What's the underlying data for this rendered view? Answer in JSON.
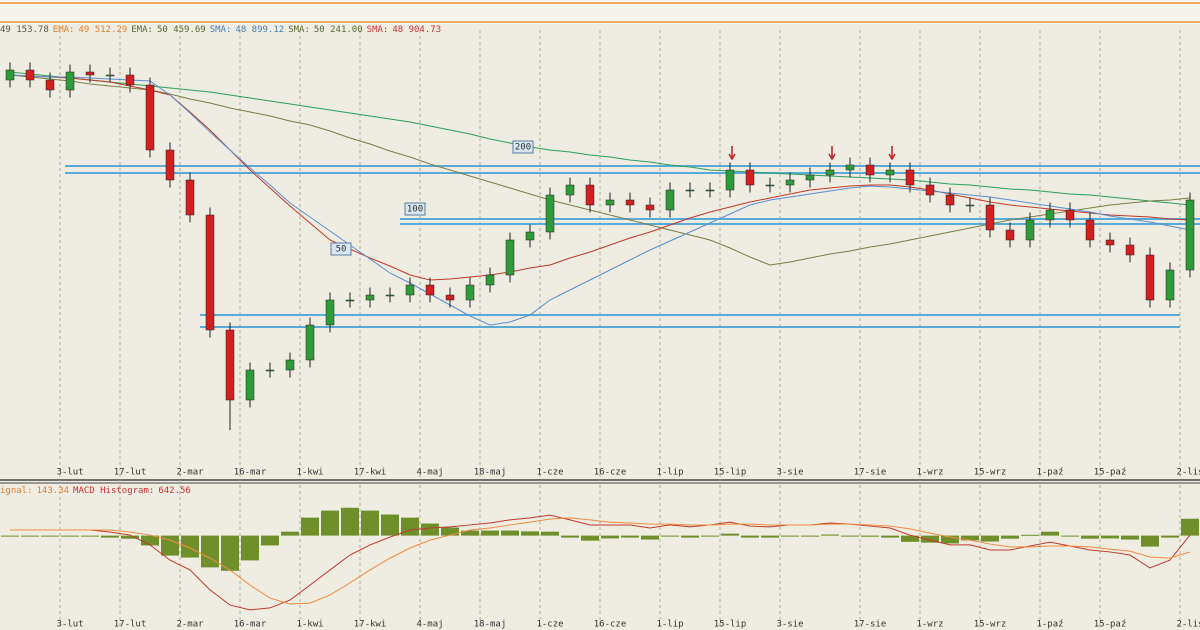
{
  "chart_data": [
    {
      "type": "candlestick",
      "categories": [
        null,
        null,
        null,
        "3-lut",
        null,
        null,
        "17-lut",
        null,
        null,
        "2-mar",
        null,
        null,
        "16-mar",
        null,
        null,
        "1-kwi",
        null,
        null,
        "17-kwi",
        null,
        null,
        "4-maj",
        null,
        null,
        "18-maj",
        null,
        null,
        "1-cze",
        null,
        null,
        "16-cze",
        null,
        null,
        "1-lip",
        null,
        null,
        "15-lip",
        null,
        null,
        "3-sie",
        null,
        null,
        null,
        "17-sie",
        null,
        null,
        "1-wrz",
        null,
        null,
        "15-wrz",
        null,
        null,
        "1-paź",
        null,
        null,
        "15-paź",
        null,
        null,
        null,
        "2-lis"
      ],
      "open": [
        54000,
        54400,
        54000,
        53600,
        54320,
        54200,
        54200,
        53800,
        51200,
        50000,
        48600,
        44000,
        41200,
        42400,
        42400,
        42800,
        44200,
        45200,
        45200,
        45400,
        45400,
        45800,
        45400,
        45200,
        45800,
        46200,
        47600,
        47920,
        49400,
        49800,
        49000,
        49200,
        49000,
        48800,
        49600,
        49600,
        49600,
        50400,
        49800,
        49800,
        50000,
        50200,
        50400,
        50600,
        50200,
        50400,
        49800,
        49400,
        49000,
        49000,
        48000,
        47600,
        48400,
        48800,
        48400,
        47600,
        47400,
        47000,
        45200,
        46400
      ],
      "high": [
        54700,
        54700,
        54300,
        54620,
        54620,
        54500,
        54500,
        54100,
        51500,
        50300,
        48900,
        44300,
        42700,
        42700,
        43100,
        44500,
        45500,
        45500,
        45700,
        45700,
        46100,
        46100,
        45700,
        46100,
        46500,
        47900,
        48220,
        49700,
        50100,
        50100,
        49500,
        49500,
        49300,
        49900,
        49900,
        49900,
        50700,
        50700,
        50100,
        50300,
        50500,
        50700,
        50900,
        50900,
        50700,
        50700,
        50100,
        49700,
        49300,
        49300,
        48300,
        48700,
        49100,
        49100,
        48700,
        47900,
        47700,
        47300,
        46700,
        49500
      ],
      "low": [
        53700,
        53700,
        53300,
        53300,
        53900,
        53900,
        53500,
        50900,
        49700,
        48300,
        43700,
        40000,
        40900,
        42100,
        42100,
        42500,
        43900,
        44900,
        44900,
        45100,
        45100,
        45100,
        44900,
        44900,
        45500,
        45900,
        47300,
        47620,
        49100,
        48700,
        48700,
        48700,
        48500,
        48500,
        49300,
        49300,
        49300,
        49500,
        49500,
        49500,
        49700,
        49900,
        50100,
        49900,
        49900,
        49500,
        49100,
        48700,
        48700,
        47700,
        47300,
        47300,
        48100,
        48100,
        47300,
        47100,
        46700,
        44900,
        44900,
        46100
      ],
      "close": [
        54400,
        54000,
        53600,
        54320,
        54200,
        54200,
        53800,
        51200,
        50000,
        48600,
        44000,
        41200,
        42400,
        42400,
        42800,
        44200,
        45200,
        45200,
        45400,
        45400,
        45800,
        45400,
        45200,
        45800,
        46200,
        47600,
        47920,
        49400,
        49800,
        49000,
        49200,
        49000,
        48800,
        49600,
        49600,
        49600,
        50400,
        49800,
        49800,
        50000,
        50200,
        50400,
        50600,
        50200,
        50400,
        49800,
        49400,
        49000,
        49000,
        48000,
        47600,
        48400,
        48800,
        48400,
        47600,
        47400,
        47000,
        45200,
        46400,
        49200
      ],
      "up_color": "#2f9a3a",
      "down_color": "#d02020",
      "series": [
        {
          "color": "#2ca05a",
          "values": [
            54320,
            54240,
            54160,
            54080,
            54000,
            53920,
            53840,
            53760,
            53680,
            53600,
            53520,
            53400,
            53280,
            53160,
            53040,
            52920,
            52800,
            52680,
            52560,
            52440,
            52320,
            52160,
            52000,
            51840,
            51640,
            51480,
            51320,
            51200,
            51120,
            51000,
            50920,
            50800,
            50720,
            50600,
            50520,
            50400,
            50360,
            50320,
            50280,
            50240,
            50200,
            50160,
            50120,
            50080,
            50040,
            50000,
            49920,
            49840,
            49800,
            49720,
            49640,
            49600,
            49520,
            49440,
            49400,
            49320,
            49240,
            49160,
            49080,
            49000
          ]
        },
        {
          "color": "#7a8046",
          "values": [
            54200,
            54120,
            54040,
            53960,
            53840,
            53760,
            53680,
            53600,
            53440,
            53240,
            53080,
            52880,
            52720,
            52560,
            52360,
            52200,
            51960,
            51680,
            51440,
            51160,
            50920,
            50640,
            50400,
            50160,
            49920,
            49680,
            49440,
            49200,
            49000,
            48800,
            48600,
            48400,
            48200,
            48000,
            47800,
            47600,
            47280,
            46920,
            46600,
            46720,
            46880,
            47040,
            47160,
            47320,
            47440,
            47600,
            47760,
            47920,
            48080,
            48240,
            48400,
            48520,
            48640,
            48760,
            48880,
            49000,
            49080,
            49160,
            49200,
            49280
          ]
        },
        {
          "color": "#c0392b",
          "values": [
            54200,
            54160,
            54120,
            54080,
            54000,
            53920,
            53760,
            53600,
            53400,
            52720,
            52000,
            51200,
            50400,
            49680,
            48960,
            48280,
            47600,
            47240,
            46880,
            46560,
            46200,
            46000,
            46040,
            46120,
            46200,
            46320,
            46480,
            46600,
            46880,
            47120,
            47400,
            47680,
            47920,
            48200,
            48480,
            48720,
            48920,
            49120,
            49280,
            49440,
            49600,
            49680,
            49760,
            49800,
            49800,
            49720,
            49600,
            49440,
            49280,
            49120,
            49000,
            48920,
            48840,
            48760,
            48680,
            48600,
            48560,
            48520,
            48440,
            48400
          ]
        },
        {
          "color": "#5b8fd0",
          "values": [
            54200,
            54160,
            54120,
            54120,
            54080,
            54040,
            54000,
            53960,
            53400,
            52680,
            51920,
            51200,
            50480,
            49800,
            49080,
            48520,
            47960,
            47400,
            46840,
            46280,
            45880,
            45440,
            45000,
            44560,
            44200,
            44320,
            44600,
            45200,
            45600,
            46000,
            46400,
            46800,
            47200,
            47560,
            47920,
            48280,
            48640,
            49000,
            49200,
            49320,
            49440,
            49560,
            49680,
            49760,
            49720,
            49640,
            49560,
            49480,
            49400,
            49320,
            49200,
            49080,
            48960,
            48840,
            48720,
            48560,
            48440,
            48320,
            48160,
            48000
          ]
        }
      ],
      "levels": [
        50560,
        50280,
        48440,
        48240,
        44600,
        44120
      ],
      "level_color": "#5aaad8",
      "annotations": [
        "200",
        "100",
        "50"
      ],
      "ylim": [
        38000,
        56000
      ],
      "legend": [
        {
          "label": "",
          "text": "49 153.78",
          "color": "#555555"
        },
        {
          "label": "EMA:",
          "text": "49 512.29",
          "color": "#e08030"
        },
        {
          "label": "EMA:",
          "text": "50 459.69",
          "color": "#556b2f"
        },
        {
          "label": "SMA:",
          "text": "48 899.12",
          "color": "#4682b4"
        },
        {
          "label": "SMA:",
          "text": "50 241.00",
          "color": "#556b2f"
        },
        {
          "label": "SMA:",
          "text": "48 904.73",
          "color": "#cc3333"
        }
      ],
      "grid": true
    },
    {
      "type": "macd",
      "categories": [
        null,
        null,
        null,
        "3-lut",
        null,
        null,
        "17-lut",
        null,
        null,
        "2-mar",
        null,
        null,
        "16-mar",
        null,
        null,
        "1-kwi",
        null,
        null,
        "17-kwi",
        null,
        null,
        "4-maj",
        null,
        null,
        "18-maj",
        null,
        null,
        "1-cze",
        null,
        null,
        "16-cze",
        null,
        null,
        "1-lip",
        null,
        null,
        "15-lip",
        null,
        null,
        "3-sie",
        null,
        null,
        null,
        "17-sie",
        null,
        null,
        "1-wrz",
        null,
        null,
        "15-wrz",
        null,
        null,
        "1-paź",
        null,
        null,
        "15-paź",
        null,
        null,
        null,
        "2-lis"
      ],
      "series": [
        {
          "color": "#c0392b",
          "values": [
            200,
            200,
            200,
            200,
            200,
            130,
            20,
            -330,
            -870,
            -1220,
            -1930,
            -2470,
            -2640,
            -2570,
            -2290,
            -1760,
            -1220,
            -690,
            -330,
            -50,
            200,
            270,
            310,
            380,
            450,
            560,
            630,
            730,
            560,
            380,
            380,
            380,
            270,
            380,
            310,
            380,
            480,
            340,
            310,
            380,
            380,
            450,
            410,
            340,
            270,
            20,
            -160,
            -330,
            -330,
            -510,
            -510,
            -370,
            -230,
            -370,
            -510,
            -580,
            -690,
            -1150,
            -870,
            20
          ]
        },
        {
          "color": "#f08c40",
          "values": [
            200,
            200,
            200,
            200,
            200,
            200,
            130,
            20,
            -160,
            -440,
            -800,
            -1220,
            -1760,
            -2220,
            -2430,
            -2400,
            -2110,
            -1680,
            -1220,
            -800,
            -440,
            -160,
            20,
            200,
            270,
            380,
            480,
            590,
            630,
            560,
            480,
            450,
            410,
            410,
            380,
            380,
            410,
            410,
            380,
            380,
            380,
            410,
            410,
            380,
            340,
            240,
            90,
            -50,
            -160,
            -300,
            -400,
            -400,
            -370,
            -370,
            -400,
            -480,
            -550,
            -760,
            -800,
            -580
          ]
        }
      ],
      "histogram": [
        0,
        0,
        0,
        0,
        0,
        -70,
        -110,
        -350,
        -710,
        -780,
        -1130,
        -1250,
        -880,
        -350,
        140,
        640,
        890,
        990,
        890,
        750,
        640,
        430,
        290,
        180,
        180,
        180,
        150,
        140,
        -70,
        -180,
        -100,
        -70,
        -140,
        -30,
        -70,
        0,
        70,
        -70,
        -70,
        0,
        0,
        40,
        0,
        -40,
        -70,
        -220,
        -250,
        -280,
        -170,
        -210,
        -110,
        30,
        140,
        0,
        -110,
        -100,
        -140,
        -390,
        -70,
        600
      ],
      "histogram_color": "#6f8f2a",
      "ylim": [
        -3000,
        1800
      ],
      "legend": [
        {
          "label": "ignal:",
          "text": "143.34",
          "color": "#e08030"
        },
        {
          "label": "MACD Histogram:",
          "text": "642.56",
          "color": "#cc3333"
        }
      ],
      "grid": true
    }
  ]
}
